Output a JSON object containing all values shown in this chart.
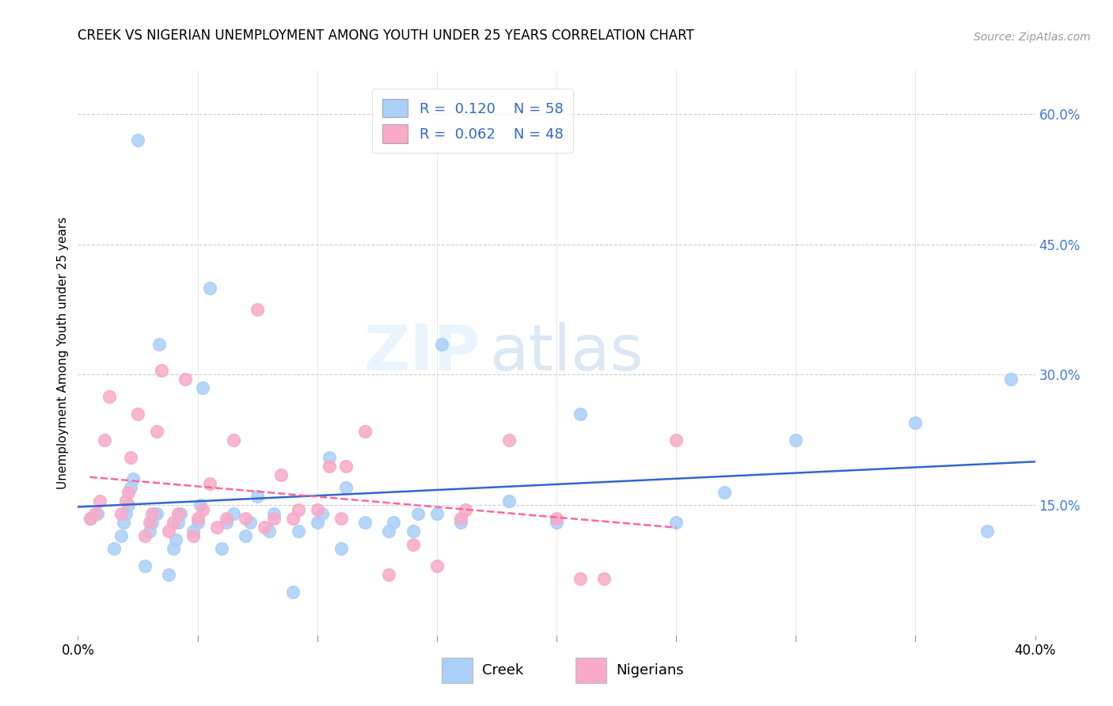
{
  "title": "CREEK VS NIGERIAN UNEMPLOYMENT AMONG YOUTH UNDER 25 YEARS CORRELATION CHART",
  "source": "Source: ZipAtlas.com",
  "ylabel": "Unemployment Among Youth under 25 years",
  "xlim": [
    0.0,
    0.4
  ],
  "ylim": [
    0.0,
    0.65
  ],
  "ytick_labels_right": [
    "15.0%",
    "30.0%",
    "45.0%",
    "60.0%"
  ],
  "ytick_vals_right": [
    0.15,
    0.3,
    0.45,
    0.6
  ],
  "creek_R": "0.120",
  "creek_N": "58",
  "nigerian_R": "0.062",
  "nigerian_N": "48",
  "creek_color": "#aacff8",
  "nigerian_color": "#f8aac8",
  "creek_line_color": "#3366cc",
  "nigerian_line_color": "#ff6699",
  "legend_label_creek": "Creek",
  "legend_label_nigerian": "Nigerians",
  "watermark_zip": "ZIP",
  "watermark_atlas": "atlas",
  "creek_x": [
    0.005,
    0.008,
    0.015,
    0.018,
    0.019,
    0.02,
    0.021,
    0.022,
    0.023,
    0.025,
    0.028,
    0.03,
    0.031,
    0.032,
    0.033,
    0.034,
    0.038,
    0.04,
    0.041,
    0.042,
    0.043,
    0.048,
    0.05,
    0.051,
    0.052,
    0.055,
    0.06,
    0.062,
    0.065,
    0.07,
    0.072,
    0.075,
    0.08,
    0.082,
    0.09,
    0.092,
    0.1,
    0.102,
    0.105,
    0.11,
    0.112,
    0.12,
    0.13,
    0.132,
    0.14,
    0.142,
    0.15,
    0.152,
    0.16,
    0.18,
    0.2,
    0.21,
    0.25,
    0.27,
    0.3,
    0.35,
    0.38,
    0.39
  ],
  "creek_y": [
    0.135,
    0.14,
    0.1,
    0.115,
    0.13,
    0.14,
    0.15,
    0.17,
    0.18,
    0.57,
    0.08,
    0.12,
    0.13,
    0.14,
    0.14,
    0.335,
    0.07,
    0.1,
    0.11,
    0.13,
    0.14,
    0.12,
    0.13,
    0.15,
    0.285,
    0.4,
    0.1,
    0.13,
    0.14,
    0.115,
    0.13,
    0.16,
    0.12,
    0.14,
    0.05,
    0.12,
    0.13,
    0.14,
    0.205,
    0.1,
    0.17,
    0.13,
    0.12,
    0.13,
    0.12,
    0.14,
    0.14,
    0.335,
    0.13,
    0.155,
    0.13,
    0.255,
    0.13,
    0.165,
    0.225,
    0.245,
    0.12,
    0.295
  ],
  "nigerian_x": [
    0.005,
    0.007,
    0.009,
    0.011,
    0.013,
    0.018,
    0.02,
    0.021,
    0.022,
    0.025,
    0.028,
    0.03,
    0.031,
    0.033,
    0.035,
    0.038,
    0.04,
    0.042,
    0.045,
    0.048,
    0.05,
    0.052,
    0.055,
    0.058,
    0.062,
    0.065,
    0.07,
    0.075,
    0.078,
    0.082,
    0.085,
    0.09,
    0.092,
    0.1,
    0.105,
    0.11,
    0.112,
    0.12,
    0.13,
    0.14,
    0.15,
    0.16,
    0.162,
    0.18,
    0.2,
    0.21,
    0.22,
    0.25
  ],
  "nigerian_y": [
    0.135,
    0.14,
    0.155,
    0.225,
    0.275,
    0.14,
    0.155,
    0.165,
    0.205,
    0.255,
    0.115,
    0.13,
    0.14,
    0.235,
    0.305,
    0.12,
    0.13,
    0.14,
    0.295,
    0.115,
    0.135,
    0.145,
    0.175,
    0.125,
    0.135,
    0.225,
    0.135,
    0.375,
    0.125,
    0.135,
    0.185,
    0.135,
    0.145,
    0.145,
    0.195,
    0.135,
    0.195,
    0.235,
    0.07,
    0.105,
    0.08,
    0.135,
    0.145,
    0.225,
    0.135,
    0.065,
    0.065,
    0.225
  ]
}
